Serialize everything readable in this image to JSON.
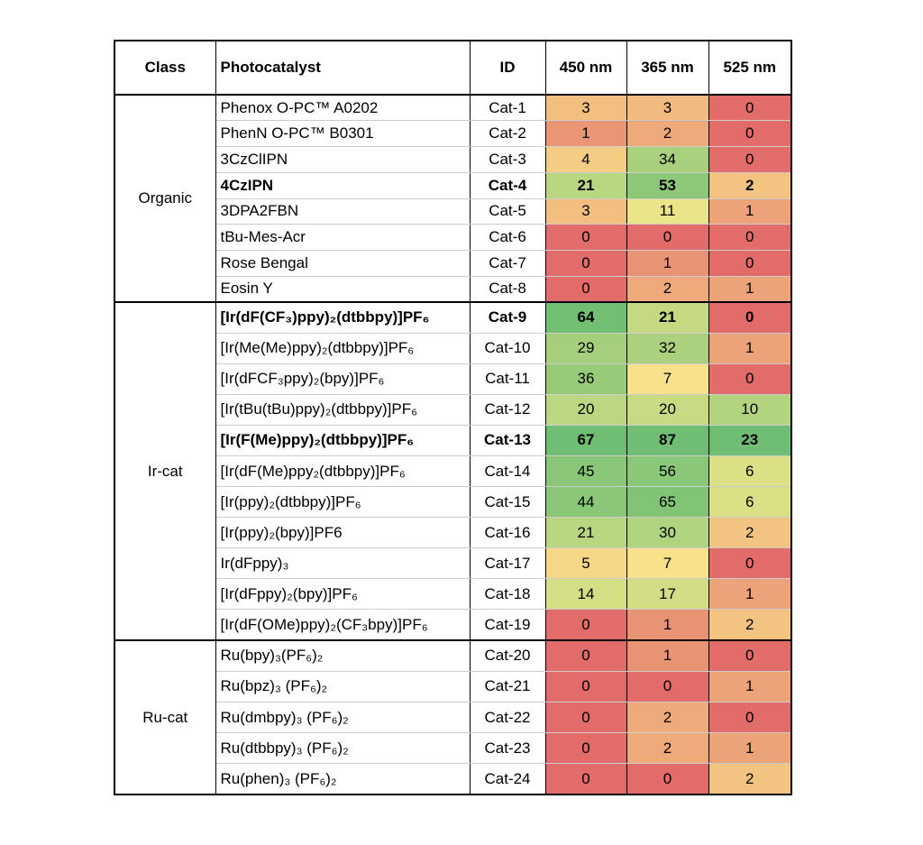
{
  "header": [
    "Class",
    "Photocatalyst",
    "ID",
    "450 nm",
    "365 nm",
    "525 nm"
  ],
  "groups": [
    {
      "class": "Organic",
      "rows": [
        {
          "photocatalyst": "Phenox O-PC™ A0202",
          "id": "Cat-1",
          "values": [
            3,
            3,
            0
          ]
        },
        {
          "photocatalyst": "PhenN O-PC™ B0301",
          "id": "Cat-2",
          "values": [
            1,
            2,
            0
          ]
        },
        {
          "photocatalyst": "3CzClIPN",
          "id": "Cat-3",
          "values": [
            4,
            34,
            0
          ]
        },
        {
          "photocatalyst": "4CzIPN",
          "id": "Cat-4",
          "values": [
            21,
            53,
            2
          ],
          "bold": true
        },
        {
          "photocatalyst": "3DPA2FBN",
          "id": "Cat-5",
          "values": [
            3,
            11,
            1
          ]
        },
        {
          "photocatalyst": "tBu-Mes-Acr",
          "id": "Cat-6",
          "values": [
            0,
            0,
            0
          ]
        },
        {
          "photocatalyst": "Rose Bengal",
          "id": "Cat-7",
          "values": [
            0,
            1,
            0
          ]
        },
        {
          "photocatalyst": "Eosin Y",
          "id": "Cat-8",
          "values": [
            0,
            2,
            1
          ]
        }
      ]
    },
    {
      "class": "Ir-cat",
      "rows": [
        {
          "photocatalyst": "[Ir(dF(CF₃)ppy)₂(dtbbpy)]PF₆",
          "id": "Cat-9",
          "values": [
            64,
            21,
            0
          ],
          "bold": true
        },
        {
          "photocatalyst": "[Ir(Me(Me)ppy)₂(dtbbpy)]PF₆",
          "id": "Cat-10",
          "values": [
            29,
            32,
            1
          ]
        },
        {
          "photocatalyst": "[Ir(dFCF₃ppy)₂(bpy)]PF₆",
          "id": "Cat-11",
          "values": [
            36,
            7,
            0
          ]
        },
        {
          "photocatalyst": "[Ir(tBu(tBu)ppy)₂(dtbbpy)]PF₆",
          "id": "Cat-12",
          "values": [
            20,
            20,
            10
          ]
        },
        {
          "photocatalyst": "[Ir(F(Me)ppy)₂(dtbbpy)]PF₆",
          "id": "Cat-13",
          "values": [
            67,
            87,
            23
          ],
          "bold": true
        },
        {
          "photocatalyst": "[Ir(dF(Me)ppy₂(dtbbpy)]PF₆",
          "id": "Cat-14",
          "values": [
            45,
            56,
            6
          ]
        },
        {
          "photocatalyst": "[Ir(ppy)₂(dtbbpy)]PF₆",
          "id": "Cat-15",
          "values": [
            44,
            65,
            6
          ]
        },
        {
          "photocatalyst": "[Ir(ppy)₂(bpy)]PF6",
          "id": "Cat-16",
          "values": [
            21,
            30,
            2
          ]
        },
        {
          "photocatalyst": "Ir(dFppy)₃",
          "id": "Cat-17",
          "values": [
            5,
            7,
            0
          ]
        },
        {
          "photocatalyst": "[Ir(dFppy)₂(bpy)]PF₆",
          "id": "Cat-18",
          "values": [
            14,
            17,
            1
          ]
        },
        {
          "photocatalyst": "[Ir(dF(OMe)ppy)₂(CF₃bpy)]PF₆",
          "id": "Cat-19",
          "values": [
            0,
            1,
            2
          ]
        }
      ]
    },
    {
      "class": "Ru-cat",
      "rows": [
        {
          "photocatalyst": "Ru(bpy)₃(PF₆)₂",
          "id": "Cat-20",
          "values": [
            0,
            1,
            0
          ]
        },
        {
          "photocatalyst": "Ru(bpz)₃ (PF₆)₂",
          "id": "Cat-21",
          "values": [
            0,
            0,
            1
          ]
        },
        {
          "photocatalyst": "Ru(dmbpy)₃ (PF₆)₂",
          "id": "Cat-22",
          "values": [
            0,
            2,
            0
          ]
        },
        {
          "photocatalyst": "Ru(dtbbpy)₃ (PF₆)₂",
          "id": "Cat-23",
          "values": [
            0,
            2,
            1
          ]
        },
        {
          "photocatalyst": "Ru(phen)₃ (PF₆)₂",
          "id": "Cat-24",
          "values": [
            0,
            0,
            2
          ]
        }
      ]
    }
  ]
}
